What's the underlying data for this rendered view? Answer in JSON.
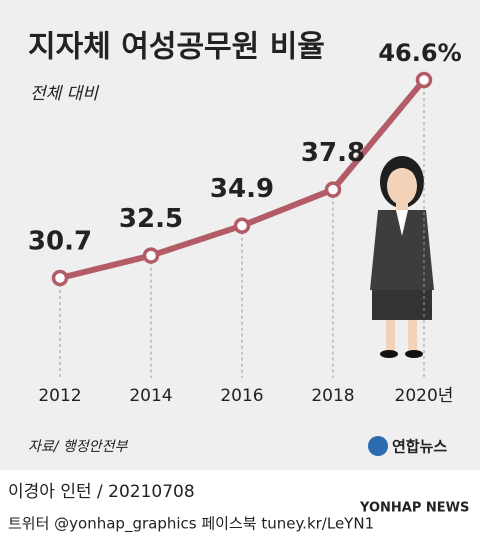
{
  "chart_data": {
    "type": "line",
    "title": "지자체 여성공무원 비율",
    "subtitle": "전체 대비",
    "categories": [
      "2012",
      "2014",
      "2016",
      "2018",
      "2020년"
    ],
    "values": [
      30.7,
      32.5,
      34.9,
      37.8,
      46.6
    ],
    "value_labels": [
      "30.7",
      "32.5",
      "34.9",
      "37.8",
      "46.6%"
    ],
    "color": "#b35c67"
  },
  "source": "자료/ 행정안전부",
  "logo": "연합뉴스",
  "credit": "이경아 인턴 / 20210708",
  "social": "트위터 @yonhap_graphics  페이스북 tuney.kr/LeYN1",
  "watermark": "YONHAP NEWS"
}
